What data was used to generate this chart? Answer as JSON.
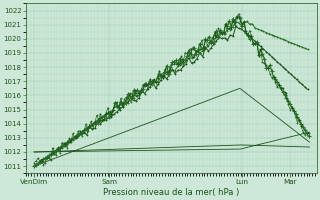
{
  "xlabel": "Pression niveau de la mer( hPa )",
  "ylim": [
    1010.5,
    1022.5
  ],
  "xlim": [
    0.0,
    4.1
  ],
  "yticks": [
    1011,
    1012,
    1013,
    1014,
    1015,
    1016,
    1017,
    1018,
    1019,
    1020,
    1021,
    1022
  ],
  "xtick_positions": [
    0.12,
    1.18,
    3.05,
    3.72
  ],
  "xtick_labels": [
    "VenDim",
    "Sam",
    "Lun",
    "Mar"
  ],
  "bg_color": "#cde8d8",
  "grid_color": "#9dc9ad",
  "line_dark": "#1a5218",
  "line_mid": "#2a6e28",
  "fig_width": 3.2,
  "fig_height": 2.0,
  "dpi": 100
}
